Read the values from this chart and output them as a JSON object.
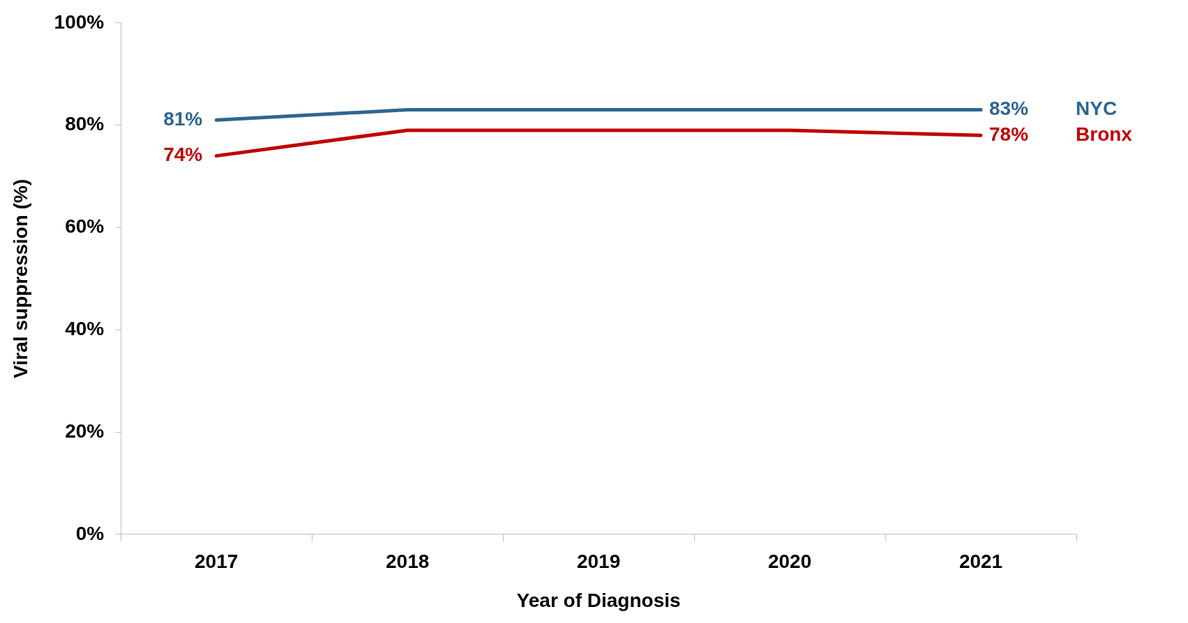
{
  "chart_data": {
    "type": "line",
    "xlabel": "Year of Diagnosis",
    "ylabel": "Viral suppression (%)",
    "categories": [
      "2017",
      "2018",
      "2019",
      "2020",
      "2021"
    ],
    "series": [
      {
        "name": "NYC",
        "color": "#2e6690",
        "values": [
          81,
          83,
          83,
          83,
          83
        ],
        "value_labels": [
          "81%",
          null,
          null,
          null,
          "83%"
        ]
      },
      {
        "name": "Bronx",
        "color": "#c00000",
        "values": [
          74,
          79,
          79,
          79,
          78
        ],
        "value_labels": [
          "74%",
          null,
          null,
          null,
          "78%"
        ]
      }
    ],
    "ylim": [
      0,
      100
    ],
    "yticks": [
      {
        "value": 0,
        "label": "0%"
      },
      {
        "value": 20,
        "label": "20%"
      },
      {
        "value": 40,
        "label": "40%"
      },
      {
        "value": 60,
        "label": "60%"
      },
      {
        "value": 80,
        "label": "80%"
      },
      {
        "value": 100,
        "label": "100%"
      }
    ],
    "grid": false,
    "legend": false,
    "marker": "none",
    "line_style": "solid"
  }
}
